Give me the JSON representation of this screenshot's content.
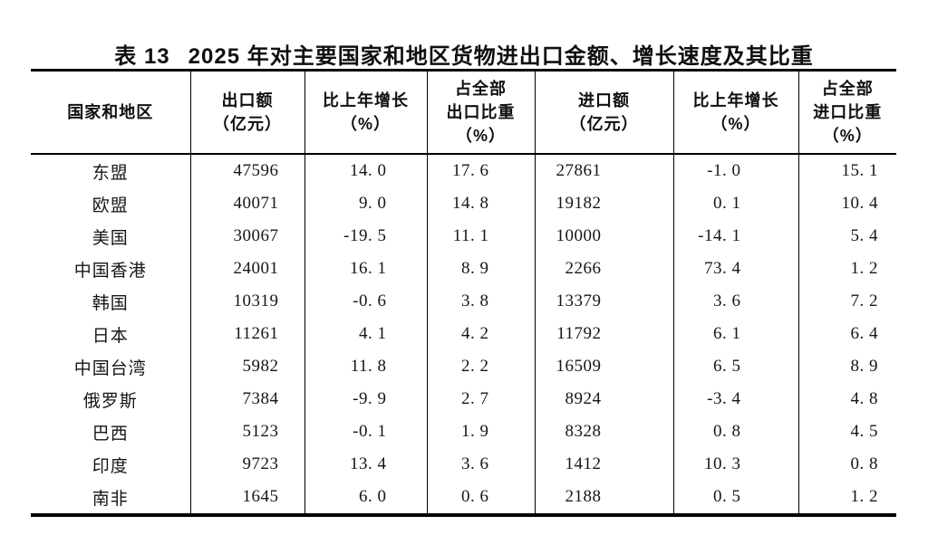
{
  "title": {
    "prefix": "表 13",
    "text": "2025 年对主要国家和地区货物进出口金额、增长速度及其比重"
  },
  "table": {
    "columns": [
      {
        "lines": [
          "国家和地区"
        ]
      },
      {
        "lines": [
          "出口额",
          "（亿元）"
        ]
      },
      {
        "lines": [
          "比上年增长",
          "（%）"
        ]
      },
      {
        "lines": [
          "占全部",
          "出口比重",
          "（%）"
        ]
      },
      {
        "lines": [
          "进口额",
          "（亿元）"
        ]
      },
      {
        "lines": [
          "比上年增长",
          "（%）"
        ]
      },
      {
        "lines": [
          "占全部",
          "进口比重",
          "（%）"
        ]
      }
    ],
    "rows": [
      [
        "东盟",
        "47596",
        "14. 0",
        "17. 6",
        "27861",
        "-1. 0",
        "15. 1"
      ],
      [
        "欧盟",
        "40071",
        "9. 0",
        "14. 8",
        "19182",
        "0. 1",
        "10. 4"
      ],
      [
        "美国",
        "30067",
        "-19. 5",
        "11. 1",
        "10000",
        "-14. 1",
        "5. 4"
      ],
      [
        "中国香港",
        "24001",
        "16. 1",
        "8. 9",
        "2266",
        "73. 4",
        "1. 2"
      ],
      [
        "韩国",
        "10319",
        "-0. 6",
        "3. 8",
        "13379",
        "3. 6",
        "7. 2"
      ],
      [
        "日本",
        "11261",
        "4. 1",
        "4. 2",
        "11792",
        "6. 1",
        "6. 4"
      ],
      [
        "中国台湾",
        "5982",
        "11. 8",
        "2. 2",
        "16509",
        "6. 5",
        "8. 9"
      ],
      [
        "俄罗斯",
        "7384",
        "-9. 9",
        "2. 7",
        "8924",
        "-3. 4",
        "4. 8"
      ],
      [
        "巴西",
        "5123",
        "-0. 1",
        "1. 9",
        "8328",
        "0. 8",
        "4. 5"
      ],
      [
        "印度",
        "9723",
        "13. 4",
        "3. 6",
        "1412",
        "10. 3",
        "0. 8"
      ],
      [
        "南非",
        "1645",
        "6. 0",
        "0. 6",
        "2188",
        "0. 5",
        "1. 2"
      ]
    ]
  },
  "chart_data": {
    "type": "table",
    "title": "表 13 2025 年对主要国家和地区货物进出口金额、增长速度及其比重",
    "columns": [
      "国家和地区",
      "出口额（亿元）",
      "比上年增长（%）",
      "占全部出口比重（%）",
      "进口额（亿元）",
      "比上年增长（%）",
      "占全部进口比重（%）"
    ],
    "records": [
      {
        "region": "东盟",
        "export": 47596,
        "export_growth": 14.0,
        "export_share": 17.6,
        "import": 27861,
        "import_growth": -1.0,
        "import_share": 15.1
      },
      {
        "region": "欧盟",
        "export": 40071,
        "export_growth": 9.0,
        "export_share": 14.8,
        "import": 19182,
        "import_growth": 0.1,
        "import_share": 10.4
      },
      {
        "region": "美国",
        "export": 30067,
        "export_growth": -19.5,
        "export_share": 11.1,
        "import": 10000,
        "import_growth": -14.1,
        "import_share": 5.4
      },
      {
        "region": "中国香港",
        "export": 24001,
        "export_growth": 16.1,
        "export_share": 8.9,
        "import": 2266,
        "import_growth": 73.4,
        "import_share": 1.2
      },
      {
        "region": "韩国",
        "export": 10319,
        "export_growth": -0.6,
        "export_share": 3.8,
        "import": 13379,
        "import_growth": 3.6,
        "import_share": 7.2
      },
      {
        "region": "日本",
        "export": 11261,
        "export_growth": 4.1,
        "export_share": 4.2,
        "import": 11792,
        "import_growth": 6.1,
        "import_share": 6.4
      },
      {
        "region": "中国台湾",
        "export": 5982,
        "export_growth": 11.8,
        "export_share": 2.2,
        "import": 16509,
        "import_growth": 6.5,
        "import_share": 8.9
      },
      {
        "region": "俄罗斯",
        "export": 7384,
        "export_growth": -9.9,
        "export_share": 2.7,
        "import": 8924,
        "import_growth": -3.4,
        "import_share": 4.8
      },
      {
        "region": "巴西",
        "export": 5123,
        "export_growth": -0.1,
        "export_share": 1.9,
        "import": 8328,
        "import_growth": 0.8,
        "import_share": 4.5
      },
      {
        "region": "印度",
        "export": 9723,
        "export_growth": 13.4,
        "export_share": 3.6,
        "import": 1412,
        "import_growth": 10.3,
        "import_share": 0.8
      },
      {
        "region": "南非",
        "export": 1645,
        "export_growth": 6.0,
        "export_share": 0.6,
        "import": 2188,
        "import_growth": 0.5,
        "import_share": 1.2
      }
    ]
  }
}
